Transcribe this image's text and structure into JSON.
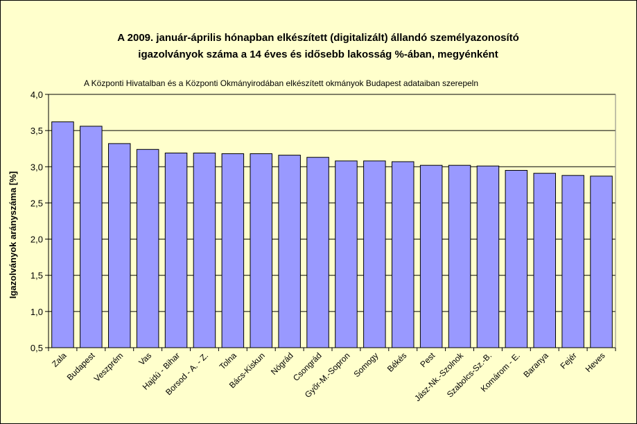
{
  "colors": {
    "background": "#ffffcc",
    "plot_area": "#ffffcc",
    "bar_fill": "#9999ff",
    "bar_stroke": "#000000",
    "gridline": "#000000"
  },
  "chart_data": {
    "type": "bar",
    "title_lines": [
      "A 2009. január-április hónapban elkészített (digitalizált) állandó személyazonosító",
      "igazolványok száma a 14 éves és idősebb lakosság %-ában, megyénként"
    ],
    "note": "A  Központi Hivatalban és a Központi Okmányirodában elkészített  okmányok Budapest adataiban szerepeln",
    "xlabel": "",
    "ylabel": "Igazolványok arányszáma [%]",
    "ylim": [
      0.5,
      4.0
    ],
    "ytick_labels": [
      "0,5",
      "1,0",
      "1,5",
      "2,0",
      "2,5",
      "3,0",
      "3,5",
      "4,0"
    ],
    "grid": true,
    "legend": "none",
    "categories": [
      "Zala",
      "Budapest",
      "Veszprém",
      "Vas",
      "Hajdú - Bihar",
      "Borsod - A. - Z.",
      "Tolna",
      "Bács-Kiskun",
      "Nógrád",
      "Csongrád",
      "Győr-M.-Sopron",
      "Somogy",
      "Békés",
      "Pest",
      "Jász-Nk.-Szolnok",
      "Szabolcs-Sz.-B.",
      "Komárom - E.",
      "Baranya",
      "Fejér",
      "Heves"
    ],
    "values": [
      3.62,
      3.56,
      3.32,
      3.24,
      3.19,
      3.19,
      3.18,
      3.18,
      3.16,
      3.13,
      3.08,
      3.08,
      3.07,
      3.02,
      3.02,
      3.01,
      2.95,
      2.91,
      2.88,
      2.87
    ]
  }
}
